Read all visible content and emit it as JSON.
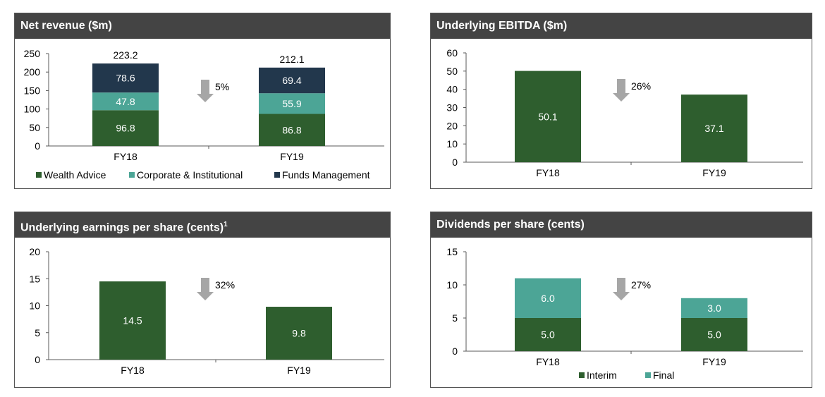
{
  "colors": {
    "wealth": "#2e5e2e",
    "corporate": "#4ca596",
    "funds": "#22374c",
    "arrow": "#a6a6a6",
    "header": "#444444"
  },
  "chart_data": [
    {
      "id": "net-revenue",
      "type": "bar",
      "stacked": true,
      "title": "Net revenue ($m)",
      "title_sup": "",
      "categories": [
        "FY18",
        "FY19"
      ],
      "series": [
        {
          "name": "Wealth Advice",
          "color": "#2e5e2e",
          "values": [
            96.8,
            86.8
          ]
        },
        {
          "name": "Corporate & Institutional",
          "color": "#4ca596",
          "values": [
            47.8,
            55.9
          ]
        },
        {
          "name": "Funds Management",
          "color": "#22374c",
          "values": [
            78.6,
            69.4
          ]
        }
      ],
      "totals": [
        "223.2",
        "212.1"
      ],
      "change": "5%",
      "ylim": [
        0,
        250
      ],
      "yticks": [
        0,
        50,
        100,
        150,
        200,
        250
      ],
      "legend": "bottom"
    },
    {
      "id": "underlying-ebitda",
      "type": "bar",
      "stacked": false,
      "title": "Underlying EBITDA ($m)",
      "title_sup": "",
      "categories": [
        "FY18",
        "FY19"
      ],
      "series": [
        {
          "color": "#2e5e2e",
          "values": [
            50.1,
            37.1
          ]
        }
      ],
      "change": "26%",
      "ylim": [
        0,
        60
      ],
      "yticks": [
        0,
        10,
        20,
        30,
        40,
        50,
        60
      ]
    },
    {
      "id": "underlying-eps",
      "type": "bar",
      "stacked": false,
      "title": "Underlying earnings per share (cents)",
      "title_sup": "1",
      "categories": [
        "FY18",
        "FY19"
      ],
      "series": [
        {
          "color": "#2e5e2e",
          "values": [
            14.5,
            9.8
          ]
        }
      ],
      "change": "32%",
      "ylim": [
        0,
        20
      ],
      "yticks": [
        0,
        5,
        10,
        15,
        20
      ]
    },
    {
      "id": "dividends-per-share",
      "type": "bar",
      "stacked": true,
      "title": "Dividends per share (cents)",
      "title_sup": "",
      "categories": [
        "FY18",
        "FY19"
      ],
      "series": [
        {
          "name": "Interim",
          "color": "#2e5e2e",
          "values": [
            5.0,
            5.0
          ]
        },
        {
          "name": "Final",
          "color": "#4ca596",
          "values": [
            6.0,
            3.0
          ]
        }
      ],
      "change": "27%",
      "ylim": [
        0,
        15
      ],
      "yticks": [
        0,
        5,
        10,
        15
      ],
      "legend": "bottom"
    }
  ]
}
